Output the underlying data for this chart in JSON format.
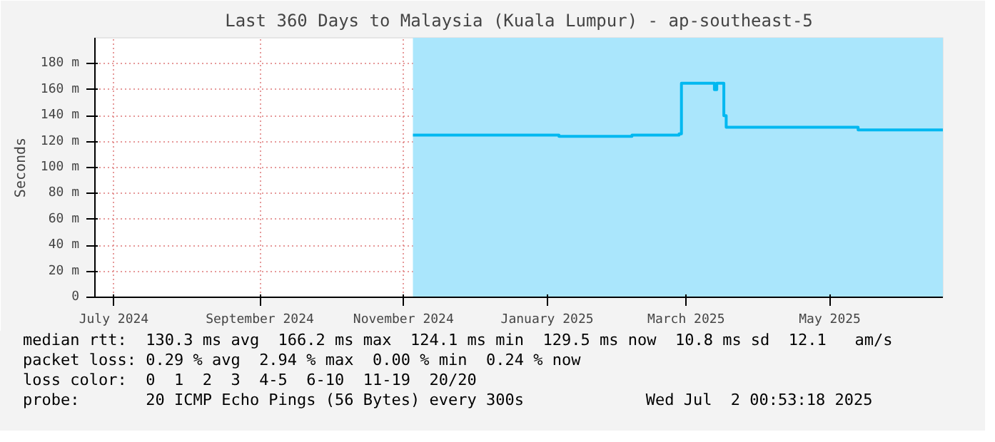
{
  "chart_data": {
    "type": "step",
    "title": "Last 360 Days to Malaysia (Kuala Lumpur) - ap-southeast-5",
    "ylabel": "Seconds",
    "x": [
      "2024-11-19",
      "2024-12-20",
      "2025-01-20",
      "2025-02-20",
      "2025-03-12",
      "2025-03-13",
      "2025-03-27",
      "2025-03-28",
      "2025-03-31",
      "2025-04-01",
      "2025-05-27",
      "2025-07-02"
    ],
    "series": [
      {
        "color": "#00b8f0",
        "values": [
          125,
          125,
          124,
          125,
          126,
          165,
          160,
          165,
          140,
          131,
          129,
          129
        ]
      }
    ],
    "xlim": [
      "2024-07-07",
      "2025-07-02"
    ],
    "xticks": [
      {
        "value": "2024-07-15",
        "label": "July 2024"
      },
      {
        "value": "2024-09-15",
        "label": "September 2024"
      },
      {
        "value": "2024-11-15",
        "label": "November 2024"
      },
      {
        "value": "2025-01-15",
        "label": "January 2025"
      },
      {
        "value": "2025-03-15",
        "label": "March 2025"
      },
      {
        "value": "2025-05-15",
        "label": "May 2025"
      }
    ],
    "ylim": [
      0,
      200
    ],
    "yticks": [
      0,
      {
        "value": 20,
        "label": "20 m"
      },
      {
        "value": 40,
        "label": "40 m"
      },
      {
        "value": 60,
        "label": "60 m"
      },
      {
        "value": 80,
        "label": "80 m"
      },
      {
        "value": 100,
        "label": "100 m"
      },
      {
        "value": 120,
        "label": "120 m"
      },
      {
        "value": 140,
        "label": "140 m"
      },
      {
        "value": 160,
        "label": "160 m"
      },
      {
        "value": 180,
        "label": "180 m"
      }
    ],
    "bands": [
      {
        "axis": "x",
        "from": "2024-11-19",
        "to": "2025-07-02",
        "color": "#aae6fc"
      }
    ],
    "grid": true,
    "annotations": [
      "median rtt:  130.3 ms avg  166.2 ms max  124.1 ms min  129.5 ms now  10.8 ms sd  12.1   am/s",
      "packet loss: 0.29 % avg  2.94 % max  0.00 % min  0.24 % now",
      "loss color:  0  1  2  3  4-5  6-10  11-19  20/20",
      "probe:       20 ICMP Echo Pings (56 Bytes) every 300s",
      "Wed Jul  2 00:53:18 2025"
    ]
  }
}
